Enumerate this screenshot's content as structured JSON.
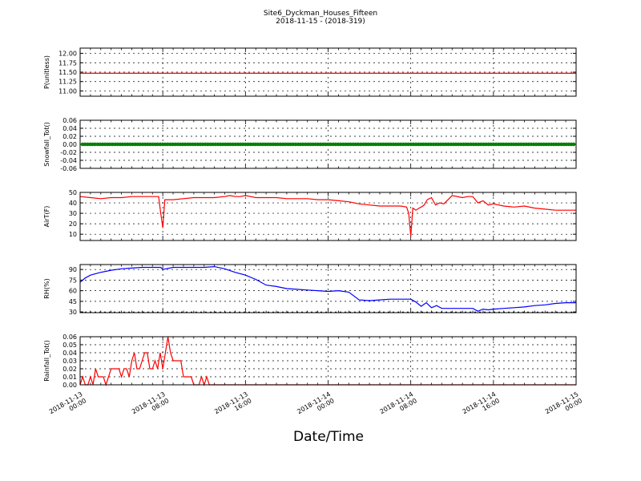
{
  "header": {
    "title": "Site6_Dyckman_Houses_Fifteen",
    "subtitle": "2018-11-15 - (2018-319)"
  },
  "chart_data": {
    "type": "line",
    "title": "Site6_Dyckman_Houses_Fifteen",
    "subtitle": "2018-11-15 - (2018-319)",
    "xlabel": "Date/Time",
    "xlim": [
      0,
      48
    ],
    "x_unit": "hours since 2018-11-13 00:00",
    "grid": true,
    "x_ticks": [
      {
        "x": 0,
        "date": "2018-11-13",
        "time": "00:00"
      },
      {
        "x": 8,
        "date": "2018-11-13",
        "time": "08:00"
      },
      {
        "x": 16,
        "date": "2018-11-13",
        "time": "16:00"
      },
      {
        "x": 24,
        "date": "2018-11-14",
        "time": "00:00"
      },
      {
        "x": 32,
        "date": "2018-11-14",
        "time": "08:00"
      },
      {
        "x": 40,
        "date": "2018-11-14",
        "time": "16:00"
      },
      {
        "x": 48,
        "date": "2018-11-15",
        "time": "00:00"
      }
    ],
    "panels": [
      {
        "ylabel": "P(unitless)",
        "ylim": [
          10.86,
          12.14
        ],
        "yticks": [
          "11.00",
          "11.25",
          "11.50",
          "11.75",
          "12.00"
        ],
        "ytick_values": [
          11.0,
          11.25,
          11.5,
          11.75,
          12.0
        ],
        "color": "#ff0000",
        "marker": false,
        "series": {
          "x": [
            0,
            48
          ],
          "y": [
            11.47,
            11.47
          ]
        }
      },
      {
        "ylabel": "Snowfall_Tot()",
        "ylim": [
          -0.06,
          0.06
        ],
        "yticks": [
          "-0.06",
          "-0.04",
          "-0.02",
          "0.00",
          "0.02",
          "0.04",
          "0.06"
        ],
        "ytick_values": [
          -0.06,
          -0.04,
          -0.02,
          0.0,
          0.02,
          0.04,
          0.06
        ],
        "color": "#008000",
        "marker": true,
        "series": {
          "x": [
            0,
            48
          ],
          "y": [
            0,
            0
          ]
        }
      },
      {
        "ylabel": "AirT(F)",
        "ylim": [
          4,
          50
        ],
        "yticks": [
          "10",
          "20",
          "30",
          "40",
          "50"
        ],
        "ytick_values": [
          10,
          20,
          30,
          40,
          50
        ],
        "color": "#ff0000",
        "marker": false,
        "series": {
          "x": [
            0,
            1,
            2,
            3,
            4,
            5,
            6,
            7,
            7.6,
            7.8,
            8.0,
            8.2,
            9,
            10,
            11,
            12,
            13,
            14,
            14.5,
            15,
            15.5,
            16,
            16.5,
            17,
            17.5,
            18,
            19,
            20,
            21,
            22,
            23,
            24,
            25,
            26,
            27,
            28,
            29,
            30,
            31,
            31.6,
            31.8,
            32.0,
            32.2,
            32.5,
            32.8,
            33.0,
            33.3,
            33.6,
            34,
            34.4,
            34.8,
            35.2,
            36,
            37,
            37.5,
            38,
            38.5,
            39,
            39.5,
            40,
            41,
            42,
            43,
            44,
            45,
            46,
            47,
            48
          ],
          "y": [
            46,
            45,
            44,
            45,
            45,
            46,
            46,
            46,
            46,
            30,
            16,
            43,
            43,
            44,
            45,
            45,
            45,
            46,
            47,
            46,
            46,
            47,
            46,
            45,
            45,
            45,
            45,
            44,
            44,
            44,
            43,
            43,
            42,
            41,
            39,
            38,
            37,
            37,
            37,
            36,
            30,
            8,
            35,
            33,
            35,
            36,
            38,
            43,
            45,
            38,
            40,
            39,
            47,
            45,
            46,
            46,
            40,
            42,
            38,
            39,
            37,
            36,
            37,
            35,
            34,
            33,
            33,
            33
          ]
        }
      },
      {
        "ylabel": "RH(%)",
        "ylim": [
          29,
          97
        ],
        "yticks": [
          "30",
          "45",
          "60",
          "75",
          "90"
        ],
        "ytick_values": [
          30,
          45,
          60,
          75,
          90
        ],
        "color": "#0000ff",
        "marker": false,
        "series": {
          "x": [
            0,
            0.5,
            1,
            2,
            3,
            4,
            5,
            6,
            7,
            7.5,
            7.8,
            8.0,
            8.3,
            9,
            10,
            11,
            12,
            13,
            14,
            15,
            16,
            17,
            18,
            19,
            20,
            21,
            22,
            23,
            24,
            25,
            26,
            27,
            28,
            29,
            30,
            31,
            32,
            32.5,
            33,
            33.5,
            34,
            34.5,
            35,
            36,
            37,
            38,
            38.5,
            39,
            39.5,
            40,
            41,
            42,
            43,
            44,
            45,
            46,
            47,
            48
          ],
          "y": [
            72,
            78,
            82,
            86,
            89,
            91,
            92,
            93,
            93,
            93,
            93,
            90,
            91,
            93,
            93,
            93,
            93,
            94,
            91,
            86,
            82,
            76,
            68,
            66,
            63,
            62,
            61,
            60,
            59,
            60,
            58,
            47,
            46,
            47,
            48,
            48,
            48,
            44,
            38,
            43,
            36,
            39,
            35,
            35,
            35,
            35,
            31,
            34,
            33,
            34,
            35,
            36,
            37,
            39,
            40,
            42,
            43,
            43
          ]
        }
      },
      {
        "ylabel": "Rainfall_Tot()",
        "ylim": [
          0,
          0.06
        ],
        "yticks": [
          "0.00",
          "0.01",
          "0.02",
          "0.03",
          "0.04",
          "0.05",
          "0.06"
        ],
        "ytick_values": [
          0.0,
          0.01,
          0.02,
          0.03,
          0.04,
          0.05,
          0.06
        ],
        "color": "#ff0000",
        "marker": false,
        "series": {
          "x": [
            0,
            0.25,
            0.5,
            0.75,
            1,
            1.25,
            1.5,
            1.75,
            2,
            2.25,
            2.5,
            2.75,
            3,
            3.25,
            3.5,
            3.75,
            4,
            4.25,
            4.5,
            4.75,
            5,
            5.25,
            5.5,
            5.75,
            6,
            6.25,
            6.5,
            6.75,
            7,
            7.25,
            7.5,
            7.75,
            8,
            8.25,
            8.5,
            8.75,
            9,
            9.25,
            9.5,
            9.75,
            10,
            10.25,
            10.5,
            10.75,
            11,
            11.25,
            11.5,
            11.75,
            12,
            12.25,
            12.5,
            12.75,
            13,
            48
          ],
          "y": [
            0,
            0.01,
            0,
            0,
            0.01,
            0,
            0.02,
            0.01,
            0.01,
            0.01,
            0,
            0.01,
            0.02,
            0.02,
            0.02,
            0.02,
            0.01,
            0.02,
            0.02,
            0.01,
            0.03,
            0.04,
            0.02,
            0.02,
            0.03,
            0.04,
            0.04,
            0.02,
            0.02,
            0.03,
            0.02,
            0.04,
            0.02,
            0.04,
            0.06,
            0.04,
            0.03,
            0.03,
            0.03,
            0.03,
            0.01,
            0.01,
            0.01,
            0.01,
            0,
            0,
            0,
            0.01,
            0,
            0.01,
            0,
            0,
            0,
            0
          ]
        }
      }
    ]
  }
}
